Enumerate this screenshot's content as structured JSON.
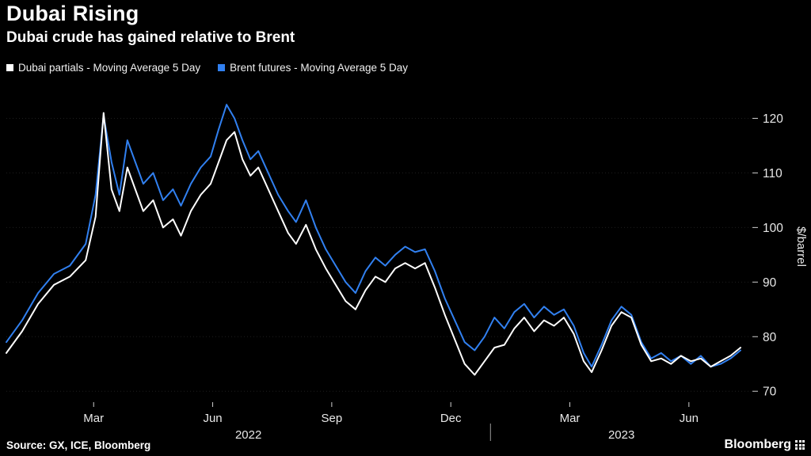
{
  "header": {
    "title": "Dubai Rising",
    "subtitle": "Dubai crude has gained relative to Brent"
  },
  "legend": [
    {
      "label": "Dubai partials - Moving Average 5 Day",
      "color": "#ffffff"
    },
    {
      "label": "Brent futures - Moving Average 5 Day",
      "color": "#3180f0"
    }
  ],
  "footer": {
    "source": "Source: GX, ICE, Bloomberg",
    "brand": "Bloomberg"
  },
  "chart_data": {
    "type": "line",
    "title": "Dubai Rising",
    "subtitle": "Dubai crude has gained relative to Brent",
    "ylabel": "$/barrel",
    "x_unit": "months since Jan 1 2022",
    "xlim": [
      -0.2,
      18.6
    ],
    "ylim": [
      68,
      125
    ],
    "grid": "horizontal-dotted",
    "legend_position": "top-left",
    "y_ticks": [
      70,
      80,
      90,
      100,
      110,
      120
    ],
    "x_ticks": [
      {
        "pos": 2,
        "label": "Mar"
      },
      {
        "pos": 5,
        "label": "Jun"
      },
      {
        "pos": 8,
        "label": "Sep"
      },
      {
        "pos": 11,
        "label": "Dec"
      },
      {
        "pos": 14,
        "label": "Mar"
      },
      {
        "pos": 17,
        "label": "Jun"
      }
    ],
    "year_labels": [
      {
        "pos": 5.9,
        "label": "2022"
      },
      {
        "pos": 15.3,
        "label": "2023"
      }
    ],
    "year_divider_pos": 12,
    "x": [
      -0.2,
      0.2,
      0.6,
      1.0,
      1.4,
      1.8,
      2.05,
      2.25,
      2.45,
      2.65,
      2.85,
      3.05,
      3.25,
      3.5,
      3.75,
      4.0,
      4.2,
      4.45,
      4.7,
      4.95,
      5.15,
      5.35,
      5.55,
      5.75,
      5.95,
      6.15,
      6.4,
      6.65,
      6.9,
      7.1,
      7.35,
      7.6,
      7.85,
      8.1,
      8.35,
      8.6,
      8.85,
      9.1,
      9.35,
      9.6,
      9.85,
      10.1,
      10.35,
      10.6,
      10.85,
      11.1,
      11.35,
      11.6,
      11.85,
      12.1,
      12.35,
      12.6,
      12.85,
      13.1,
      13.35,
      13.6,
      13.85,
      14.1,
      14.35,
      14.55,
      14.8,
      15.05,
      15.3,
      15.55,
      15.8,
      16.05,
      16.3,
      16.55,
      16.8,
      17.05,
      17.3,
      17.55,
      17.8,
      18.05,
      18.3
    ],
    "series": [
      {
        "name": "Dubai partials - Moving Average 5 Day",
        "color": "#ffffff",
        "values": [
          77,
          81,
          86,
          89.5,
          91,
          94,
          102,
          121,
          107,
          103,
          111,
          107,
          103,
          105,
          100,
          101.5,
          98.5,
          103,
          106,
          108,
          112,
          116,
          117.5,
          112.5,
          109.5,
          111,
          107,
          103,
          99,
          97,
          100.5,
          96,
          92.5,
          89.5,
          86.5,
          85,
          88.5,
          91,
          90,
          92.5,
          93.5,
          92.5,
          93.5,
          89,
          84,
          79.5,
          75,
          73,
          75.5,
          78,
          78.5,
          81.5,
          83.5,
          81,
          83,
          82,
          83.5,
          80.5,
          75.5,
          73.5,
          77.5,
          82,
          84.5,
          83.5,
          78.5,
          75.5,
          76,
          75,
          76.5,
          75.5,
          76,
          74.5,
          75.5,
          76.5,
          78
        ]
      },
      {
        "name": "Brent futures - Moving Average 5 Day",
        "color": "#3180f0",
        "values": [
          79,
          83,
          88,
          91.5,
          93,
          97,
          106,
          120.5,
          112,
          106,
          116,
          112,
          108,
          110,
          105,
          107,
          104,
          108,
          111,
          113,
          118,
          122.5,
          120,
          116,
          112.5,
          114,
          110,
          106,
          103,
          101,
          105,
          100,
          96,
          93,
          90,
          88,
          92,
          94.5,
          93,
          95,
          96.5,
          95.5,
          96,
          92,
          87,
          83,
          79,
          77.5,
          80,
          83.5,
          81.5,
          84.5,
          86,
          83.5,
          85.5,
          84,
          85,
          82,
          77,
          74.5,
          78.5,
          83,
          85.5,
          84,
          79,
          76,
          77,
          75.5,
          76.5,
          75,
          76.5,
          74.5,
          75,
          76,
          77.5
        ]
      }
    ]
  }
}
